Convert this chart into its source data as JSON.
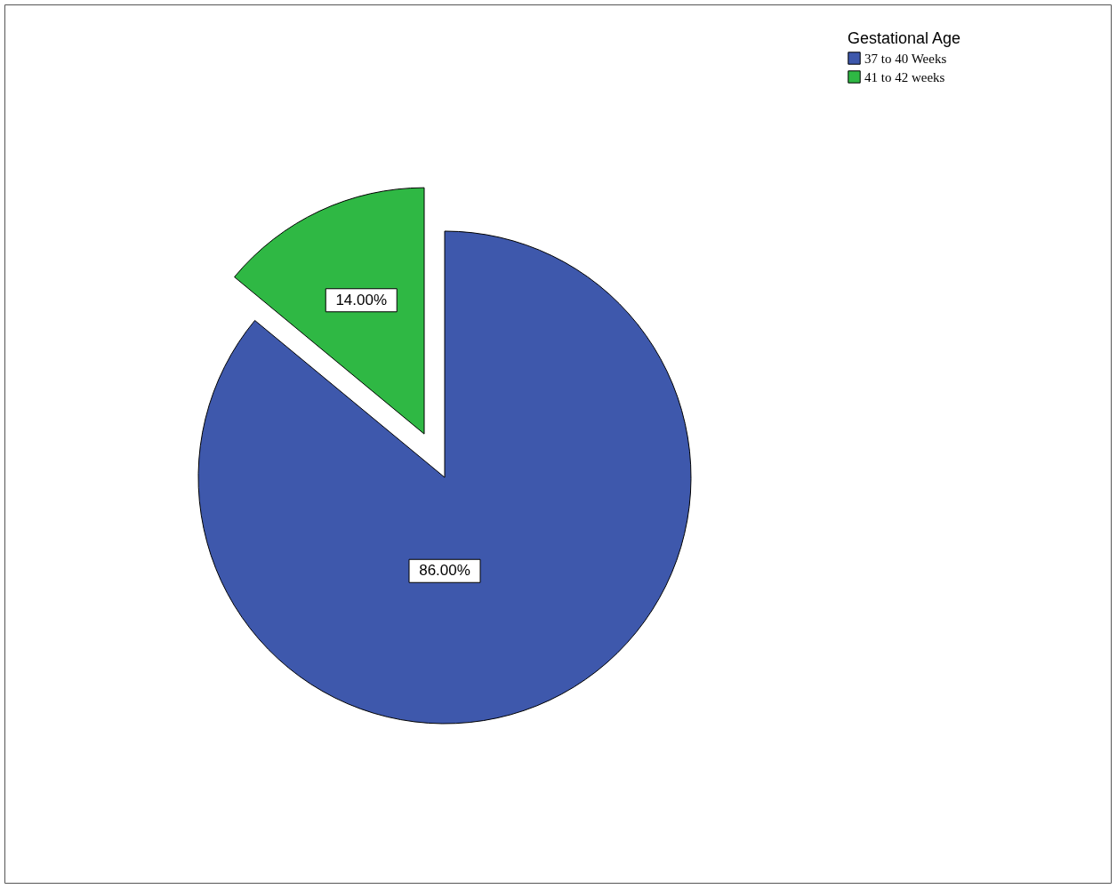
{
  "chart_data": {
    "type": "pie",
    "legend_title": "Gestational Age",
    "categories": [
      "37 to 40 Weeks",
      "41 to 42 weeks"
    ],
    "values": [
      86,
      14
    ],
    "colors": [
      "#3e58ac",
      "#2fb844"
    ],
    "value_labels": [
      "86.00%",
      "14.00%"
    ],
    "legend": "top right"
  }
}
